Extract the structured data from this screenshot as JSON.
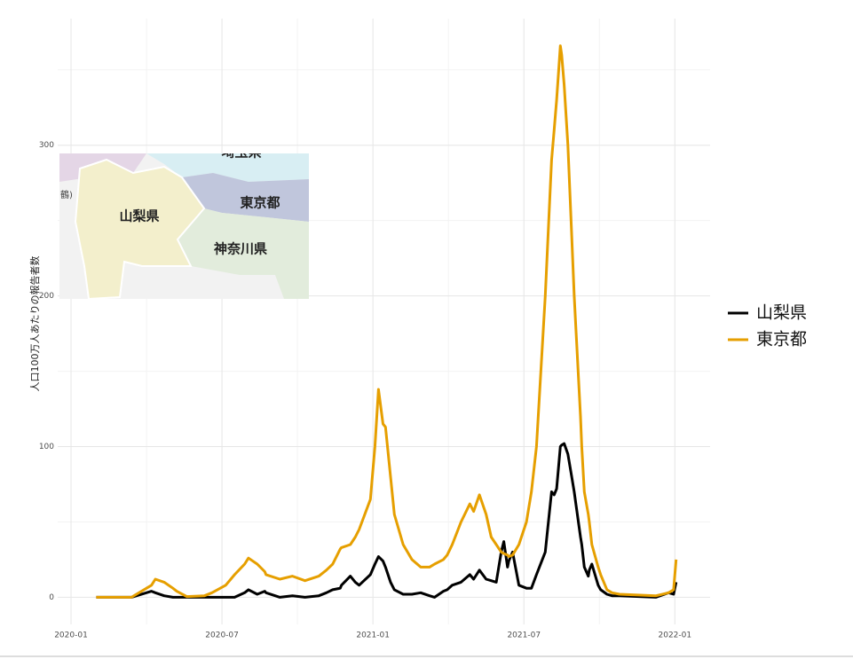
{
  "chart_data": {
    "type": "line",
    "y_label": "人口100万人あたりの報告者数",
    "x": [
      1.0,
      2.4,
      3.2,
      3.35,
      3.7,
      4.05,
      4.2,
      4.6,
      5.3,
      5.6,
      6.15,
      6.5,
      6.9,
      7.05,
      7.4,
      7.7,
      7.75,
      8.3,
      8.8,
      9.3,
      9.85,
      10.15,
      10.4,
      10.7,
      10.75,
      11.1,
      11.3,
      11.45,
      11.9,
      12.08,
      12.22,
      12.4,
      12.5,
      12.7,
      12.85,
      13.2,
      13.55,
      13.9,
      14.25,
      14.45,
      14.8,
      14.95,
      15.15,
      15.5,
      15.85,
      16.0,
      16.23,
      16.5,
      16.7,
      16.9,
      17.1,
      17.2,
      17.35,
      17.4,
      17.55,
      17.8,
      18.1,
      18.3,
      18.5,
      18.85,
      19.1,
      19.2,
      19.3,
      19.45,
      19.5,
      19.6,
      19.75,
      19.9,
      20.0,
      20.25,
      20.3,
      20.4,
      20.56,
      20.6,
      20.7,
      20.95,
      21.05,
      21.3,
      21.5,
      21.8,
      23.25,
      23.75,
      23.95,
      24.05
    ],
    "series": [
      {
        "name": "山梨県",
        "color": "#000000",
        "values": [
          0,
          0,
          4,
          3,
          1,
          0,
          0,
          0,
          0,
          0,
          0,
          0,
          3,
          5,
          2,
          4,
          3,
          0,
          1,
          0,
          1,
          3,
          5,
          6,
          8,
          14,
          10,
          8,
          15,
          22,
          27,
          24,
          20,
          10,
          5,
          2,
          2,
          3,
          1,
          0,
          4,
          5,
          8,
          10,
          15,
          12,
          18,
          12,
          11,
          10,
          30,
          37,
          20,
          24,
          30,
          8,
          6,
          6,
          15,
          30,
          70,
          68,
          72,
          100,
          101,
          102,
          95,
          80,
          70,
          40,
          35,
          20,
          14,
          18,
          22,
          8,
          5,
          2,
          1,
          1,
          0,
          3,
          2,
          10
        ]
      },
      {
        "name": "東京都",
        "color": "#e69f00",
        "values": [
          0,
          0,
          8,
          12,
          10,
          6,
          4,
          0.5,
          1,
          3,
          8,
          15,
          22,
          26,
          22,
          17,
          15,
          12,
          14,
          11,
          14,
          18,
          22,
          32,
          33,
          35,
          40,
          45,
          65,
          100,
          138,
          115,
          113,
          80,
          55,
          35,
          25,
          20,
          20,
          22,
          25,
          28,
          35,
          50,
          62,
          57,
          68,
          55,
          40,
          35,
          30,
          29,
          28,
          27,
          28,
          35,
          50,
          70,
          100,
          200,
          290,
          310,
          330,
          366,
          360,
          340,
          300,
          240,
          200,
          120,
          100,
          70,
          55,
          50,
          35,
          20,
          15,
          5,
          3,
          2,
          1,
          3,
          5,
          25
        ]
      }
    ],
    "xlim": [
      -0.53,
      25.4
    ],
    "xticks": [
      {
        "value": 0,
        "label": "2020-01"
      },
      {
        "value": 6,
        "label": "2020-07"
      },
      {
        "value": 12,
        "label": "2021-01"
      },
      {
        "value": 18,
        "label": "2021-07"
      },
      {
        "value": 24,
        "label": "2022-01"
      }
    ],
    "x_minor_ticks": [
      3,
      9,
      15,
      21
    ],
    "ylim": [
      -18,
      384
    ],
    "yticks": [
      0,
      100,
      200,
      300
    ],
    "y_minor_ticks": [
      50,
      150,
      250,
      350
    ],
    "grid": true,
    "legend": "right"
  },
  "inset_map": {
    "labels": [
      "山梨県",
      "東京都",
      "神奈川県",
      "埼玉県",
      "鶴)"
    ]
  }
}
